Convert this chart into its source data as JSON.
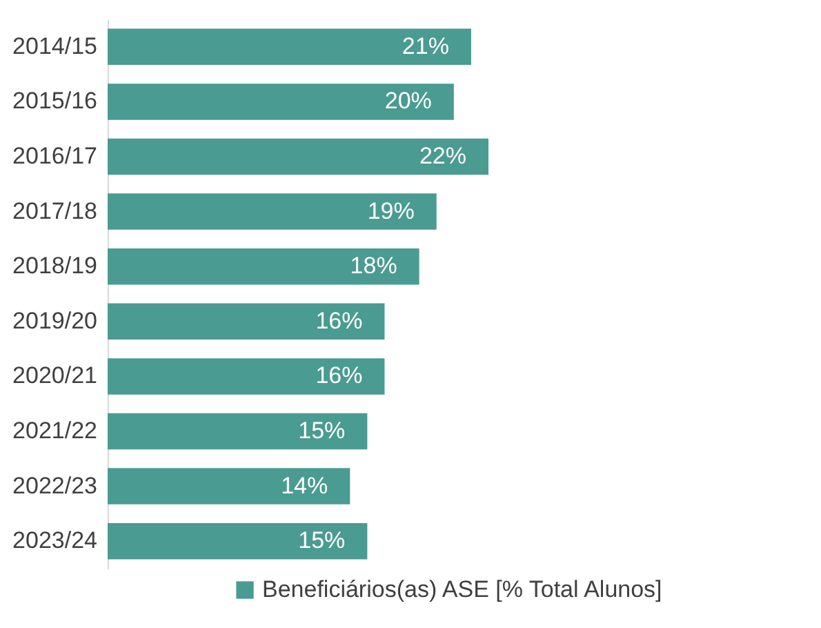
{
  "chart_data": {
    "type": "bar",
    "orientation": "horizontal",
    "categories": [
      "2014/15",
      "2015/16",
      "2016/17",
      "2017/18",
      "2018/19",
      "2019/20",
      "2020/21",
      "2021/22",
      "2022/23",
      "2023/24"
    ],
    "series": [
      {
        "name": "Beneficiários(as) ASE [% Total Alunos]",
        "color": "#4a9b91",
        "values": [
          21,
          20,
          22,
          19,
          18,
          16,
          16,
          15,
          14,
          15
        ],
        "value_labels": [
          "21%",
          "20%",
          "22%",
          "19%",
          "18%",
          "16%",
          "16%",
          "15%",
          "14%",
          "15%"
        ]
      }
    ],
    "legend": "bottom"
  }
}
